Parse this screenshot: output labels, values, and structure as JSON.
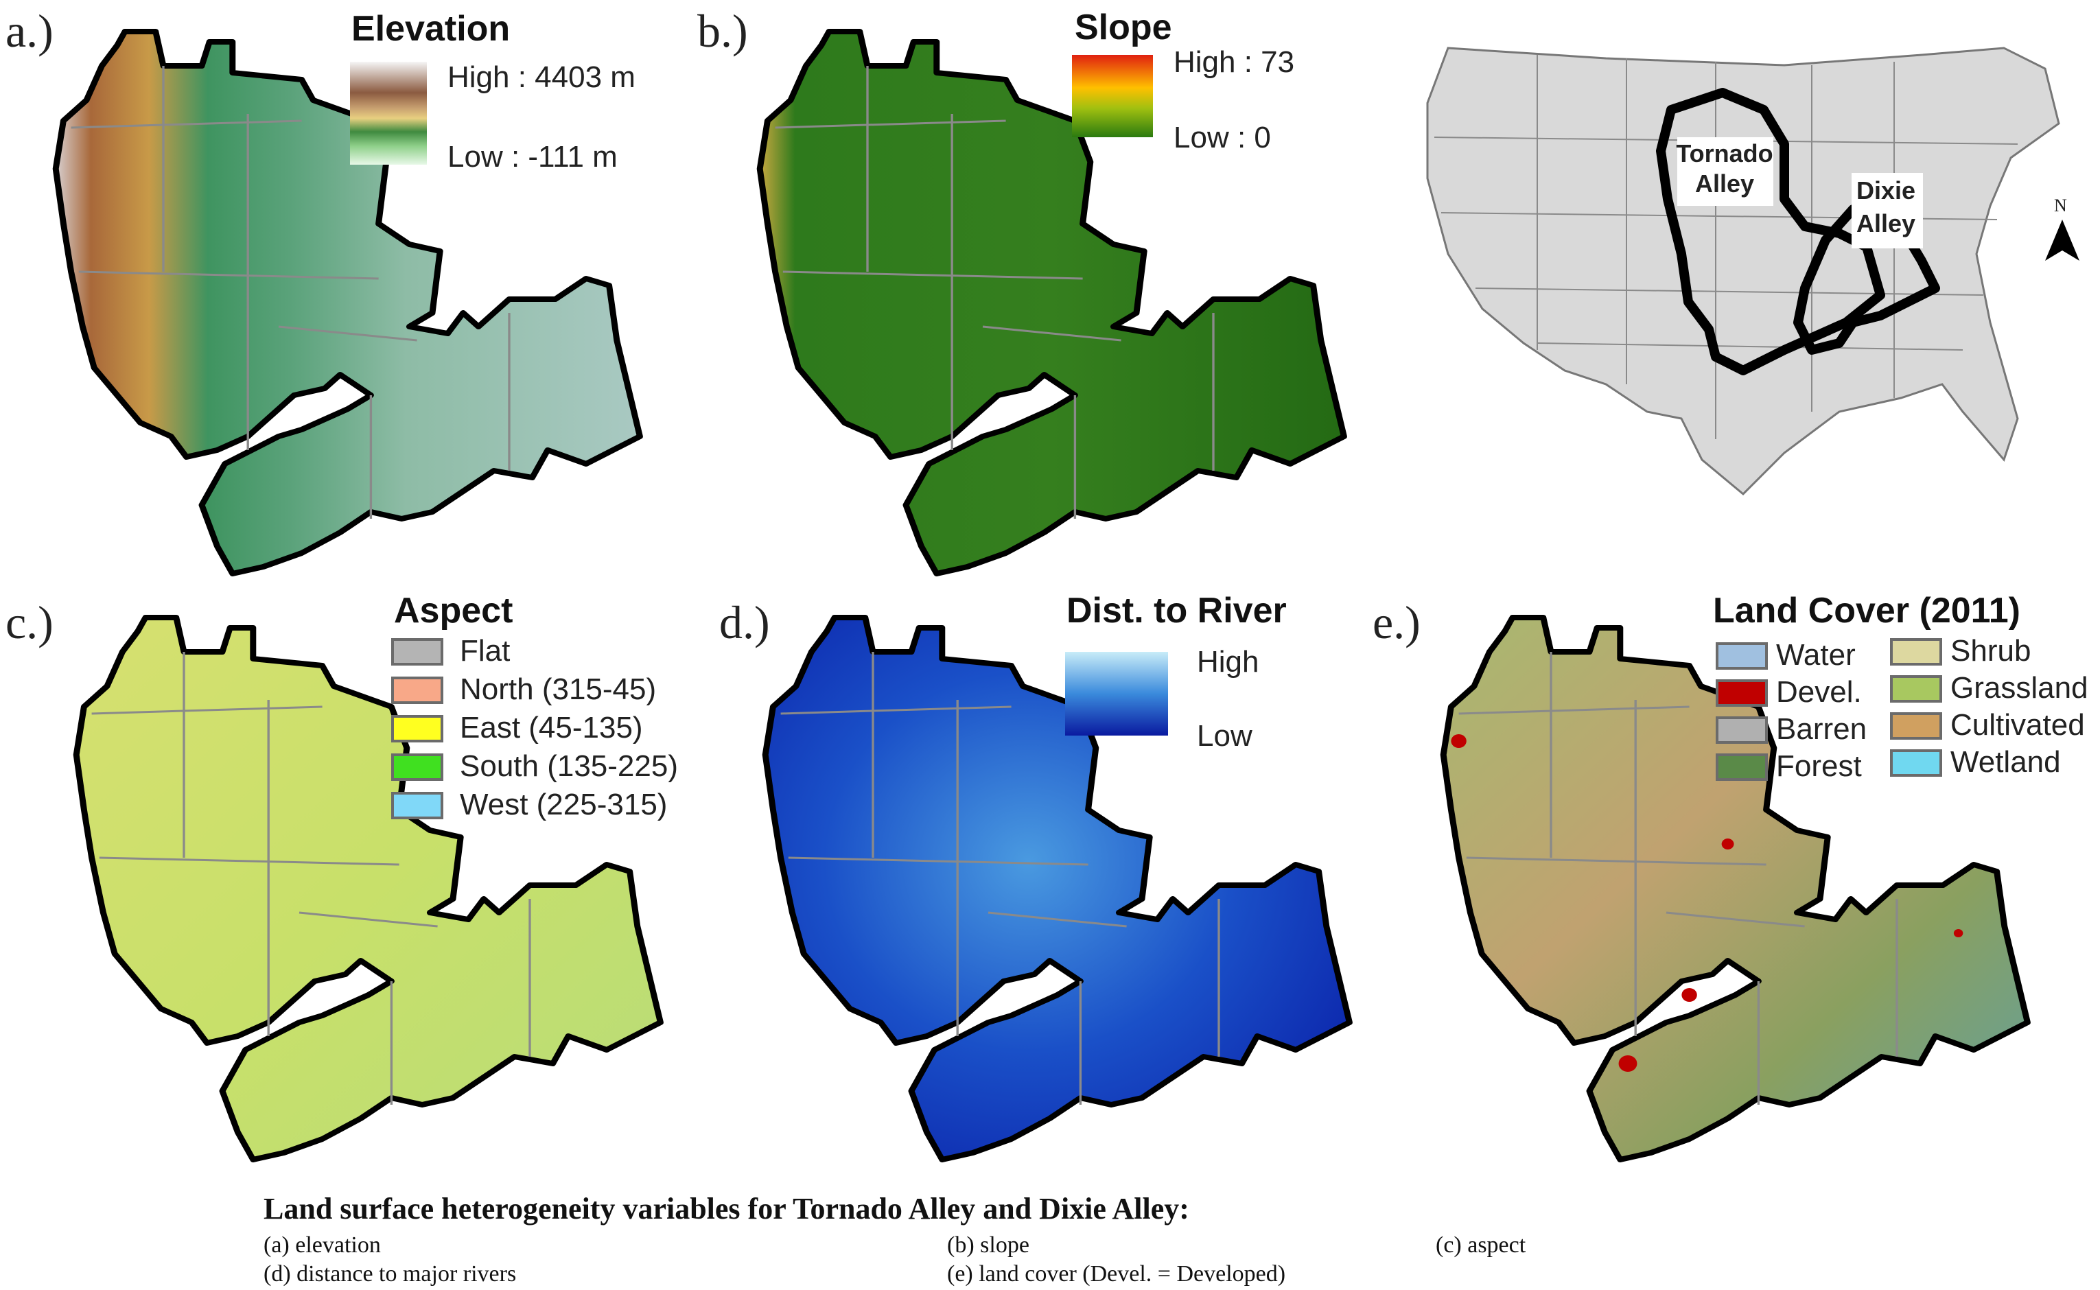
{
  "figure": {
    "caption_title": "Land surface heterogeneity variables for Tornado Alley and Dixie Alley:",
    "caption_items": [
      "(a) elevation",
      "(b) slope",
      "(c) aspect",
      "(d) distance to major rivers",
      "(e) land cover (Devel. = Developed)"
    ]
  },
  "panels": {
    "a": {
      "label": "a.)",
      "legend_title": "Elevation",
      "high": "High : 4403 m",
      "low": "Low : -111 m",
      "colors": [
        "#f5f5f5",
        "#8b5a40",
        "#c8a070",
        "#e8d080",
        "#3f8a3f",
        "#8fd08a",
        "#e8f8e8"
      ]
    },
    "b": {
      "label": "b.)",
      "legend_title": "Slope",
      "high": "High : 73",
      "low": "Low : 0",
      "colors": [
        "#e02010",
        "#ffc000",
        "#2a7a10"
      ]
    },
    "c": {
      "label": "c.)",
      "legend_title": "Aspect",
      "classes": [
        {
          "label": "Flat",
          "color": "#b4b4b4"
        },
        {
          "label": "North (315-45)",
          "color": "#f8a888"
        },
        {
          "label": "East (45-135)",
          "color": "#ffff20"
        },
        {
          "label": "South (135-225)",
          "color": "#40e020"
        },
        {
          "label": "West (225-315)",
          "color": "#80d8f8"
        }
      ]
    },
    "d": {
      "label": "d.)",
      "legend_title": "Dist. to River",
      "high": "High",
      "low": "Low",
      "colors": [
        "#c8ecf8",
        "#3a8adc",
        "#0a1aa0"
      ]
    },
    "e": {
      "label": "e.)",
      "legend_title": "Land Cover (2011)",
      "classes_left": [
        {
          "label": "Water",
          "color": "#a0c0e0"
        },
        {
          "label": "Devel.",
          "color": "#c00000"
        },
        {
          "label": "Barren",
          "color": "#b0b0b0"
        },
        {
          "label": "Forest",
          "color": "#5a8a48"
        }
      ],
      "classes_right": [
        {
          "label": "Shrub",
          "color": "#ddd8a0"
        },
        {
          "label": "Grassland",
          "color": "#a8c860"
        },
        {
          "label": "Cultivated",
          "color": "#d0a060"
        },
        {
          "label": "Wetland",
          "color": "#70d8f0"
        }
      ]
    },
    "overview": {
      "tornado_label": "Tornado Alley",
      "dixie_label": "Dixie Alley",
      "north_label": "N"
    }
  }
}
